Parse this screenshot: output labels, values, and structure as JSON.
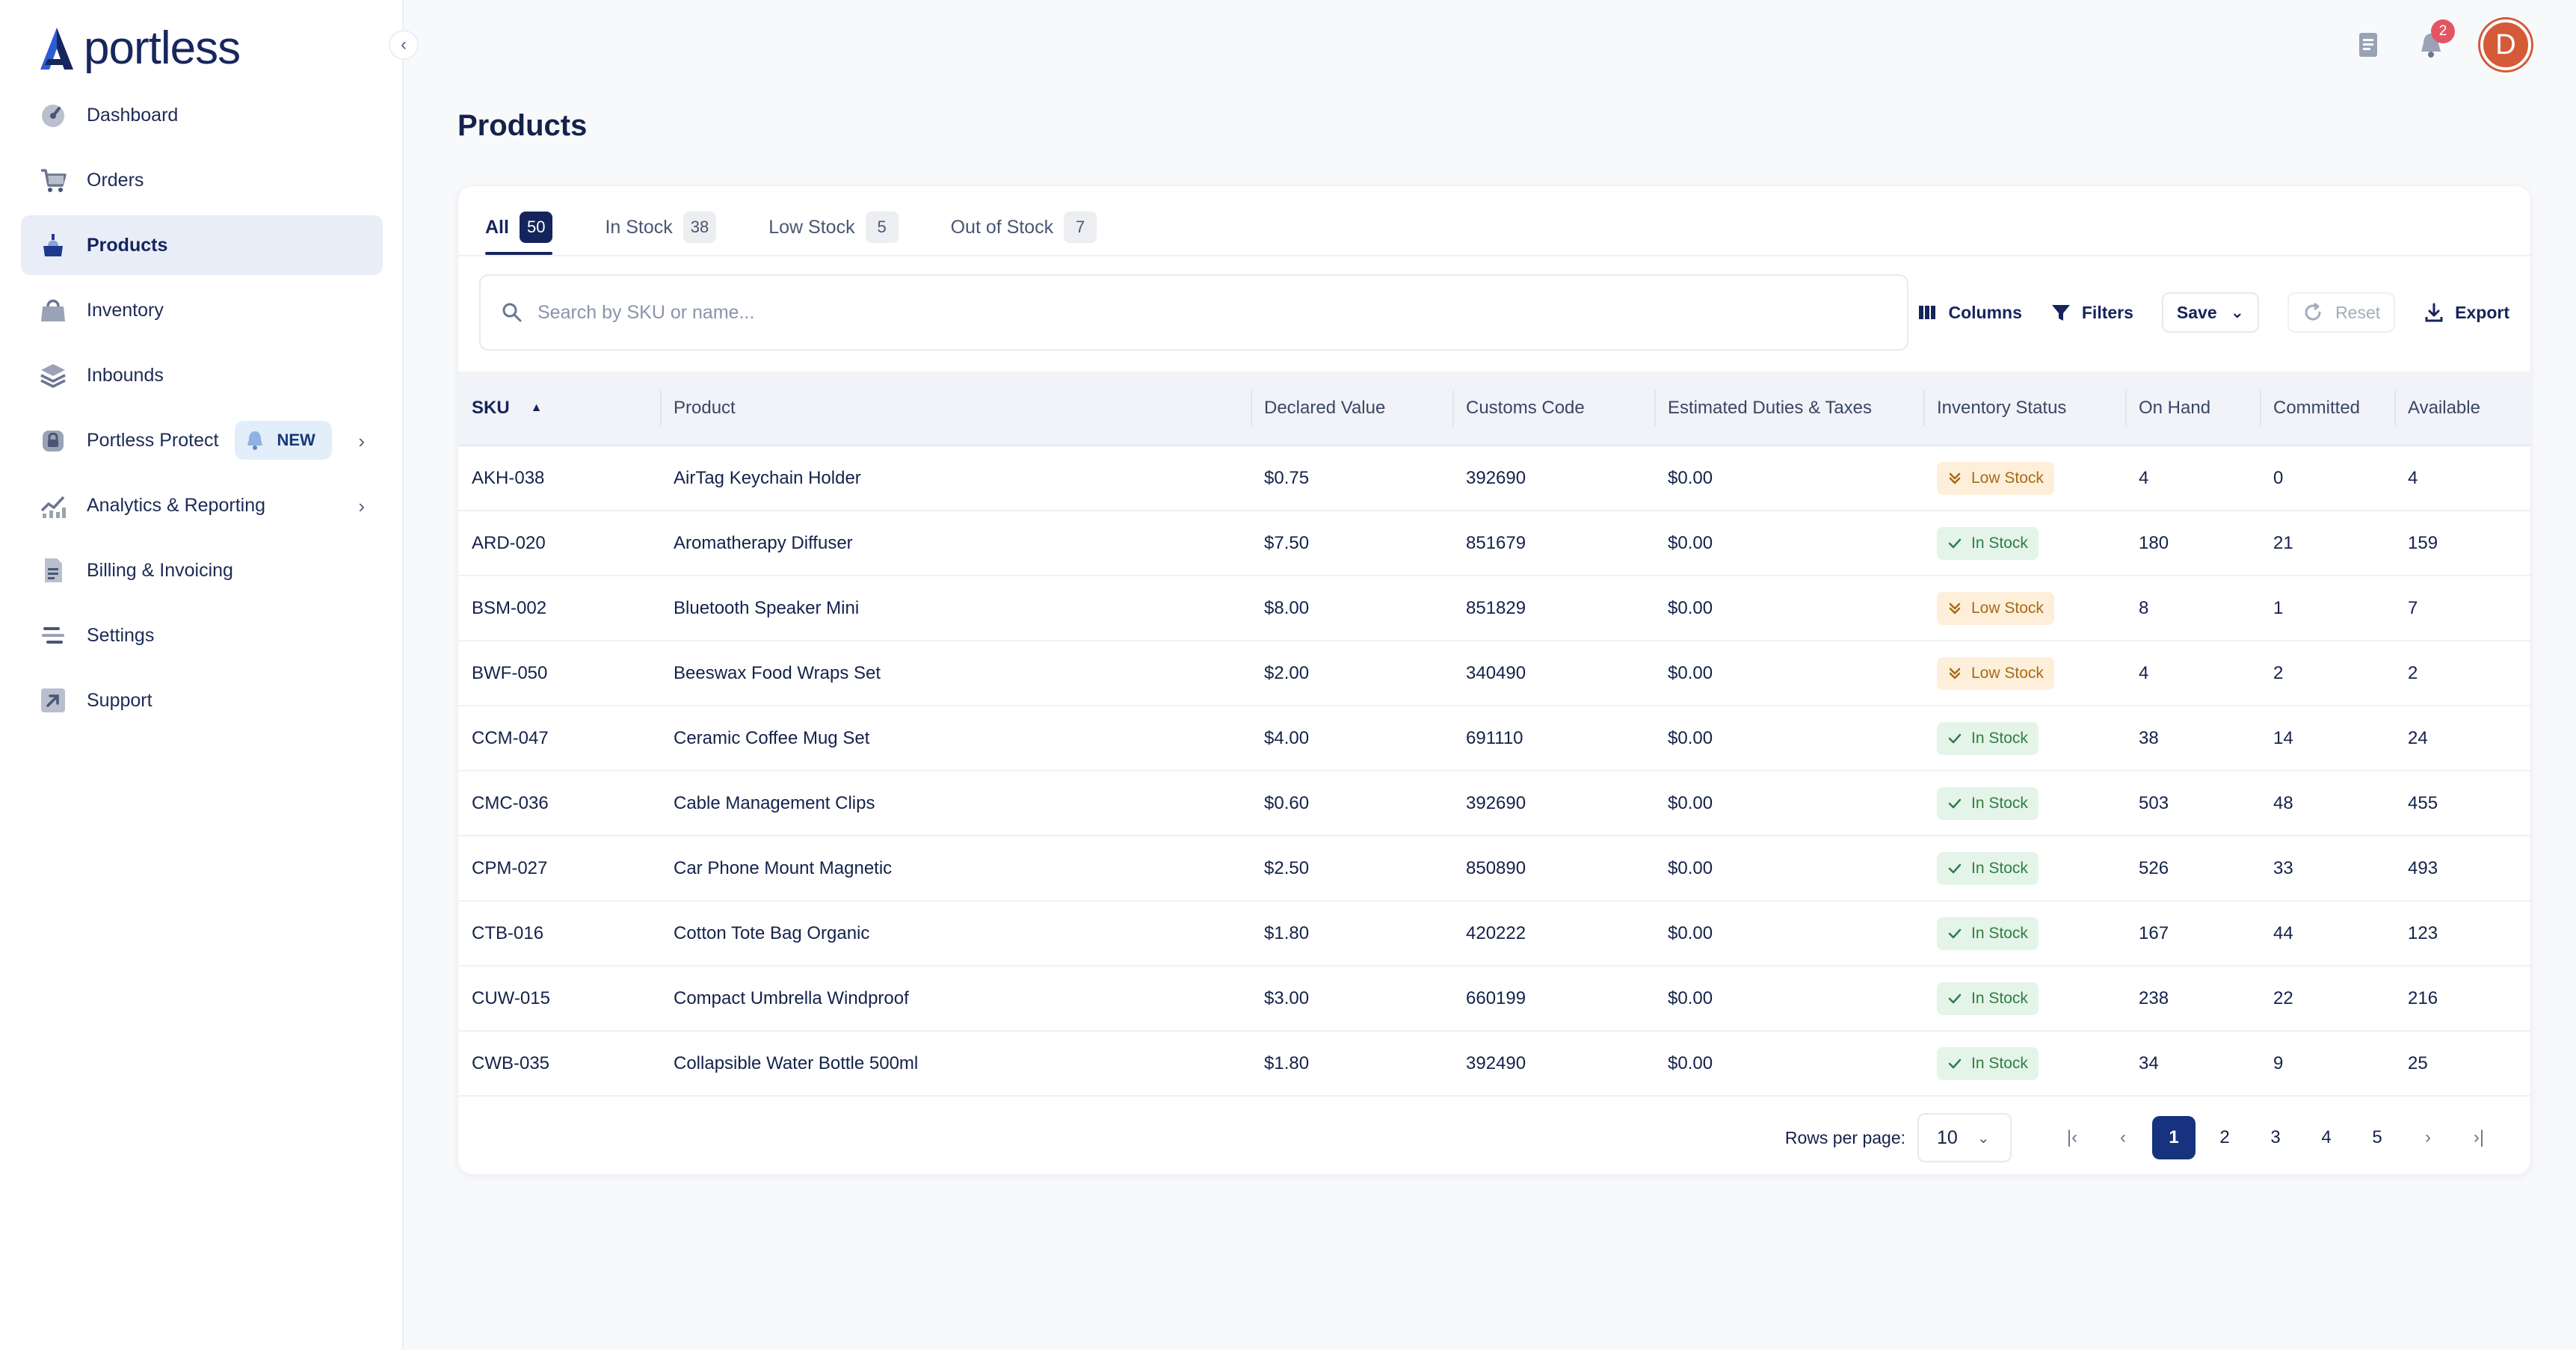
{
  "brand": {
    "name": "portless",
    "color": "#17275e"
  },
  "sidebar": {
    "items": [
      {
        "label": "Dashboard",
        "icon": "dashboard-gauge-icon"
      },
      {
        "label": "Orders",
        "icon": "cart-icon"
      },
      {
        "label": "Products",
        "icon": "product-icon",
        "active": true
      },
      {
        "label": "Inventory",
        "icon": "inventory-bag-icon"
      },
      {
        "label": "Inbounds",
        "icon": "layers-icon"
      },
      {
        "label": "Portless Protect",
        "icon": "lock-icon",
        "badge": "NEW",
        "chevron": true
      },
      {
        "label": "Analytics & Reporting",
        "icon": "chart-icon",
        "chevron": true
      },
      {
        "label": "Billing & Invoicing",
        "icon": "document-icon"
      },
      {
        "label": "Settings",
        "icon": "sliders-icon"
      },
      {
        "label": "Support",
        "icon": "arrow-up-right-icon"
      }
    ]
  },
  "topbar": {
    "notification_count": "2",
    "avatar_initial": "D",
    "avatar_color": "#d55a37"
  },
  "page": {
    "title": "Products"
  },
  "tabs": [
    {
      "label": "All",
      "count": "50",
      "active": true
    },
    {
      "label": "In Stock",
      "count": "38"
    },
    {
      "label": "Low Stock",
      "count": "5"
    },
    {
      "label": "Out of Stock",
      "count": "7"
    }
  ],
  "toolbar": {
    "search_placeholder": "Search by SKU or name...",
    "columns_label": "Columns",
    "filters_label": "Filters",
    "save_label": "Save",
    "reset_label": "Reset",
    "export_label": "Export"
  },
  "table": {
    "headers": [
      "SKU",
      "Product",
      "Declared Value",
      "Customs Code",
      "Estimated Duties & Taxes",
      "Inventory Status",
      "On Hand",
      "Committed",
      "Available"
    ],
    "rows": [
      {
        "sku": "AKH-038",
        "product": "AirTag Keychain Holder",
        "value": "$0.75",
        "code": "392690",
        "duties": "$0.00",
        "status": "Low Stock",
        "on_hand": "4",
        "committed": "0",
        "available": "4"
      },
      {
        "sku": "ARD-020",
        "product": "Aromatherapy Diffuser",
        "value": "$7.50",
        "code": "851679",
        "duties": "$0.00",
        "status": "In Stock",
        "on_hand": "180",
        "committed": "21",
        "available": "159"
      },
      {
        "sku": "BSM-002",
        "product": "Bluetooth Speaker Mini",
        "value": "$8.00",
        "code": "851829",
        "duties": "$0.00",
        "status": "Low Stock",
        "on_hand": "8",
        "committed": "1",
        "available": "7"
      },
      {
        "sku": "BWF-050",
        "product": "Beeswax Food Wraps Set",
        "value": "$2.00",
        "code": "340490",
        "duties": "$0.00",
        "status": "Low Stock",
        "on_hand": "4",
        "committed": "2",
        "available": "2"
      },
      {
        "sku": "CCM-047",
        "product": "Ceramic Coffee Mug Set",
        "value": "$4.00",
        "code": "691110",
        "duties": "$0.00",
        "status": "In Stock",
        "on_hand": "38",
        "committed": "14",
        "available": "24"
      },
      {
        "sku": "CMC-036",
        "product": "Cable Management Clips",
        "value": "$0.60",
        "code": "392690",
        "duties": "$0.00",
        "status": "In Stock",
        "on_hand": "503",
        "committed": "48",
        "available": "455"
      },
      {
        "sku": "CPM-027",
        "product": "Car Phone Mount Magnetic",
        "value": "$2.50",
        "code": "850890",
        "duties": "$0.00",
        "status": "In Stock",
        "on_hand": "526",
        "committed": "33",
        "available": "493"
      },
      {
        "sku": "CTB-016",
        "product": "Cotton Tote Bag Organic",
        "value": "$1.80",
        "code": "420222",
        "duties": "$0.00",
        "status": "In Stock",
        "on_hand": "167",
        "committed": "44",
        "available": "123"
      },
      {
        "sku": "CUW-015",
        "product": "Compact Umbrella Windproof",
        "value": "$3.00",
        "code": "660199",
        "duties": "$0.00",
        "status": "In Stock",
        "on_hand": "238",
        "committed": "22",
        "available": "216"
      },
      {
        "sku": "CWB-035",
        "product": "Collapsible Water Bottle 500ml",
        "value": "$1.80",
        "code": "392490",
        "duties": "$0.00",
        "status": "In Stock",
        "on_hand": "34",
        "committed": "9",
        "available": "25"
      }
    ]
  },
  "pagination": {
    "rows_per_page_label": "Rows per page:",
    "rows_per_page": "10",
    "pages": [
      "1",
      "2",
      "3",
      "4",
      "5"
    ],
    "current_page": "1"
  }
}
